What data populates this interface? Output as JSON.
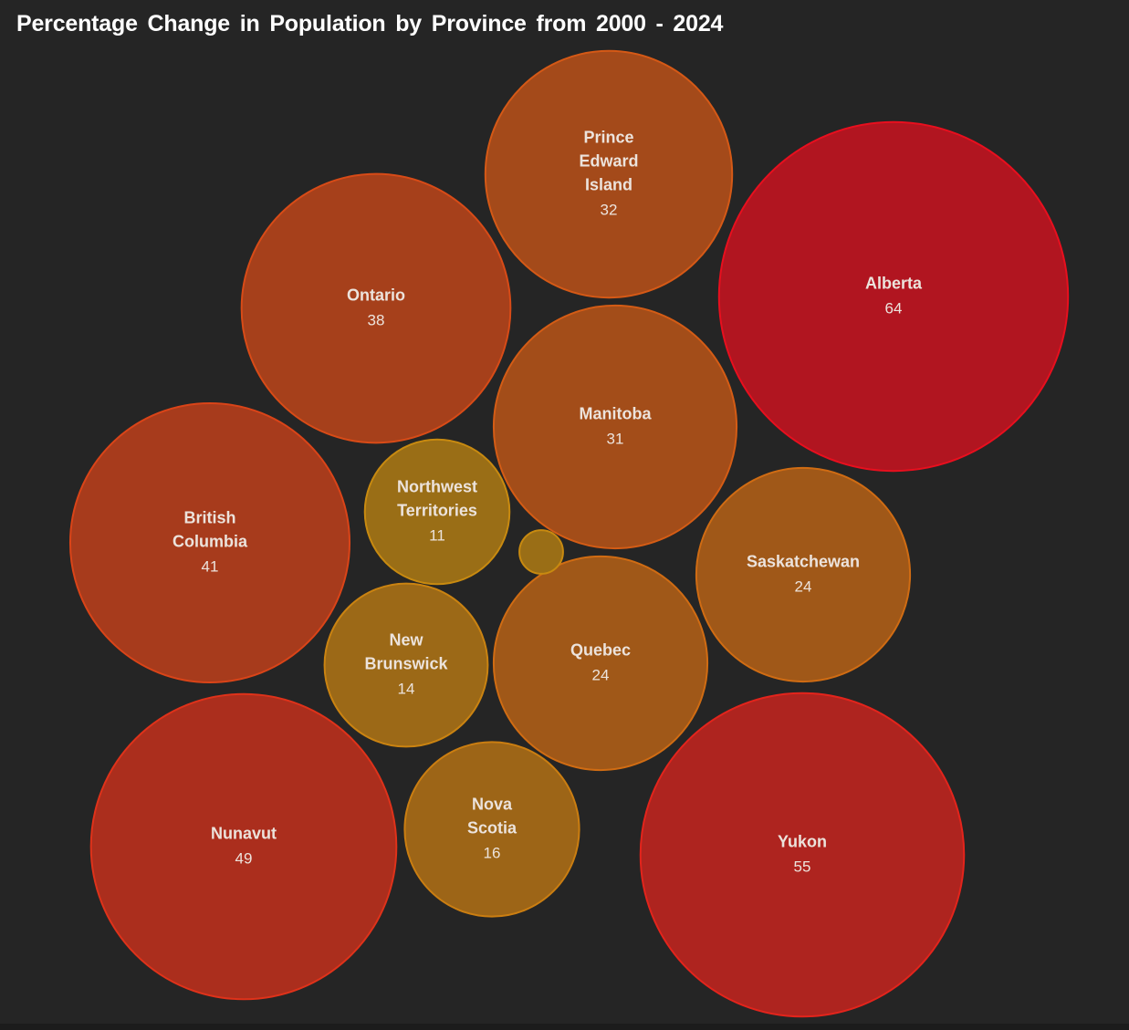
{
  "chart_data": {
    "type": "bubble",
    "title": "Percentage Change in Population by Province from 2000 - 2024",
    "unit": "% change",
    "colors": {
      "background": "#252525",
      "low": "#c88a10",
      "high": "#e80f1e"
    },
    "bubbles": [
      {
        "name": "Alberta",
        "value": 64
      },
      {
        "name": "Yukon",
        "value": 55
      },
      {
        "name": "Nunavut",
        "value": 49
      },
      {
        "name": "British Columbia",
        "value": 41
      },
      {
        "name": "Ontario",
        "value": 38
      },
      {
        "name": "Prince Edward Island",
        "value": 32
      },
      {
        "name": "Manitoba",
        "value": 31
      },
      {
        "name": "Saskatchewan",
        "value": 24
      },
      {
        "name": "Quebec",
        "value": 24
      },
      {
        "name": "Nova Scotia",
        "value": 16
      },
      {
        "name": "New Brunswick",
        "value": 14
      },
      {
        "name": "Northwest Territories",
        "value": 11
      },
      {
        "name": "",
        "value": 1
      }
    ]
  }
}
